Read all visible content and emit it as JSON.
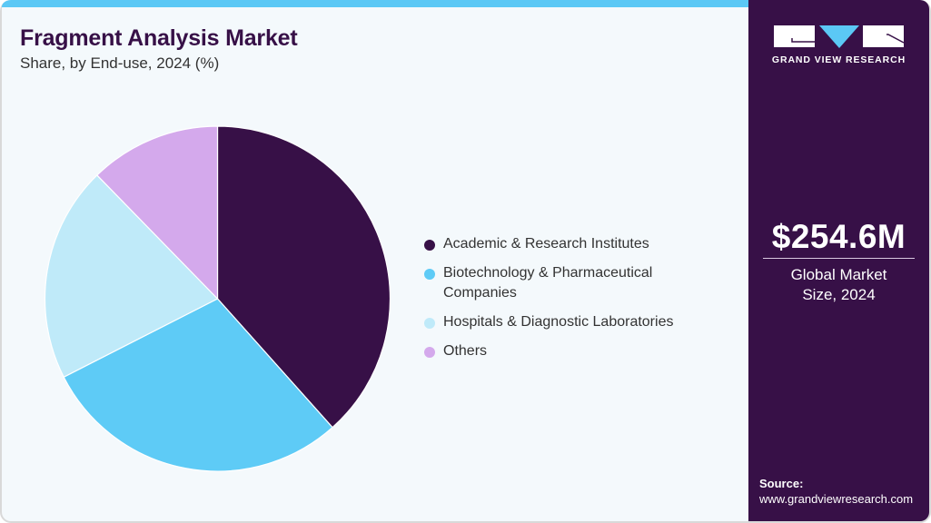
{
  "header": {
    "title": "Fragment Analysis Market",
    "subtitle": "Share, by End-use, 2024 (%)"
  },
  "colors": {
    "brand_dark": "#371047",
    "accent_blue": "#5bc8f5",
    "background": "#f4f9fc"
  },
  "chart_data": {
    "type": "pie",
    "title": "Fragment Analysis Market",
    "subtitle": "Share, by End-use, 2024 (%)",
    "categories": [
      "Academic & Research Institutes",
      "Biotechnology & Pharmaceutical Companies",
      "Hospitals & Diagnostic Laboratories",
      "Others"
    ],
    "values": [
      38.4,
      29.1,
      20.2,
      12.3
    ],
    "colors": [
      "#371047",
      "#5ecbf6",
      "#bfeaf9",
      "#d4a9ec"
    ],
    "start_angle": "12 o'clock, clockwise",
    "legend_position": "right",
    "units": "%"
  },
  "legend": {
    "items": [
      {
        "label": "Academic & Research Institutes",
        "color": "#371047"
      },
      {
        "label": "Biotechnology & Pharmaceutical Companies",
        "color": "#5ecbf6"
      },
      {
        "label": "Hospitals & Diagnostic Laboratories",
        "color": "#bfeaf9"
      },
      {
        "label": "Others",
        "color": "#d4a9ec"
      }
    ]
  },
  "sidebar": {
    "logo_text": "GRAND VIEW RESEARCH",
    "market_size_value": "$254.6M",
    "market_size_label": "Global Market Size, 2024",
    "source_label": "Source:",
    "source_url": "www.grandviewresearch.com"
  }
}
